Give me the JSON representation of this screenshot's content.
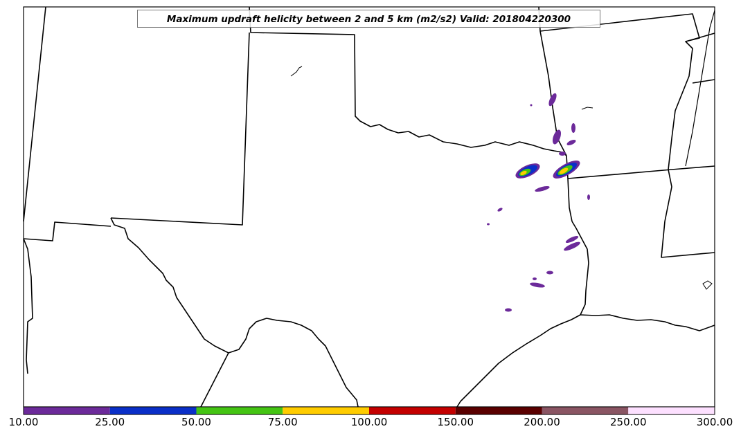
{
  "title": "Maximum updraft helicity between 2 and 5 km (m2/s2) Valid: 201804220300",
  "colorbar": {
    "ticks": [
      "10.00",
      "25.00",
      "50.00",
      "75.00",
      "100.00",
      "150.00",
      "200.00",
      "250.00",
      "300.00"
    ],
    "colors": [
      "#6c2a9a",
      "#0a2fc8",
      "#44c413",
      "#ffcc00",
      "#c40000",
      "#5a0000",
      "#8a5563",
      "#fde0ff"
    ]
  },
  "map": {
    "border_color": "#000000",
    "background": "#ffffff"
  }
}
